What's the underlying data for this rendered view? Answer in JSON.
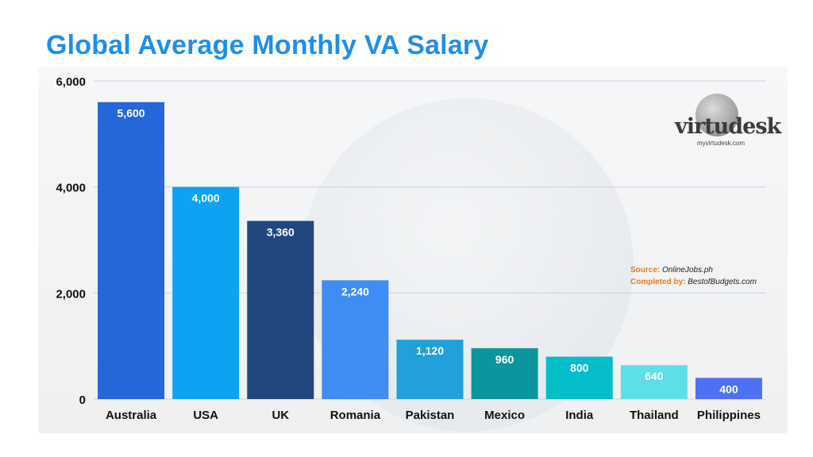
{
  "title": "Global Average Monthly VA Salary",
  "logo": {
    "name": "virtudesk",
    "url": "myvirtudesk.com"
  },
  "notes": {
    "source_label": "Source:",
    "source_value": "OnlineJobs.ph",
    "completed_label": "Completed by:",
    "completed_value": "BestofBudgets.com"
  },
  "chart_data": {
    "type": "bar",
    "title": "Global Average Monthly VA Salary",
    "categories": [
      "Australia",
      "USA",
      "UK",
      "Romania",
      "Pakistan",
      "Mexico",
      "India",
      "Thailand",
      "Philippines"
    ],
    "values": [
      5600,
      4000,
      3360,
      2240,
      1120,
      960,
      800,
      640,
      400
    ],
    "value_labels": [
      "5,600",
      "4,000",
      "3,360",
      "2,240",
      "1,120",
      "960",
      "800",
      "640",
      "400"
    ],
    "colors": [
      "#2367db",
      "#0ea2f2",
      "#22477e",
      "#3f8cf2",
      "#20a1dc",
      "#09979d",
      "#04bdcb",
      "#5ddfe6",
      "#4d70f6"
    ],
    "ylim": [
      0,
      6000
    ],
    "yticks": [
      0,
      2000,
      4000,
      6000
    ],
    "ytick_labels": [
      "0",
      "2,000",
      "4,000",
      "6,000"
    ],
    "xlabel": "",
    "ylabel": "",
    "grid": true,
    "legend": "none"
  }
}
